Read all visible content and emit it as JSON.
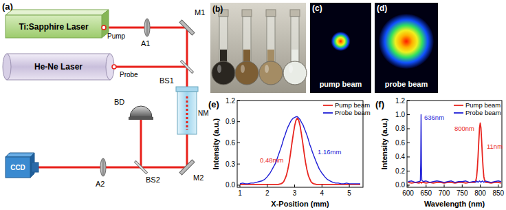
{
  "panels": {
    "a": {
      "label": "(a)",
      "components": {
        "pump_laser": "Ti:Sapphire Laser",
        "probe_laser": "He-Ne Laser",
        "pump_beam": "Pump",
        "probe_beam": "Probe",
        "attenuator_1": "A1",
        "mirror_1": "M1",
        "beam_splitter_1": "BS1",
        "sample": "NM",
        "mirror_2": "M2",
        "beam_splitter_2": "BS2",
        "beam_dump": "BD",
        "attenuator_2": "A2",
        "camera": "CCD"
      }
    },
    "b": {
      "label": "(b)"
    },
    "c": {
      "label": "(c)",
      "caption": "pump beam"
    },
    "d": {
      "label": "(d)",
      "caption": "probe beam"
    }
  },
  "chart_data": [
    {
      "type": "line",
      "title": "(e)",
      "x_label": "X-Position (mm)",
      "y_label": "Intensity (a.u.)",
      "x": [
        1.0,
        1.1,
        1.2,
        1.3,
        1.4,
        1.5,
        1.6,
        1.7,
        1.8,
        1.9,
        2.0,
        2.1,
        2.2,
        2.3,
        2.4,
        2.5,
        2.55,
        2.6,
        2.65,
        2.7,
        2.75,
        2.8,
        2.85,
        2.9,
        2.95,
        3.0,
        3.05,
        3.1,
        3.15,
        3.2,
        3.25,
        3.3,
        3.35,
        3.4,
        3.45,
        3.5,
        3.55,
        3.6,
        3.65,
        3.7,
        3.8,
        3.9,
        4.0,
        4.1,
        4.2,
        4.3,
        4.4,
        4.5,
        4.6,
        4.7,
        4.8,
        4.9,
        5.0,
        5.1,
        5.2,
        5.3,
        5.4
      ],
      "series": [
        {
          "name": "Pump beam",
          "color": "#e8251f",
          "values": [
            0.01,
            0.01,
            0.01,
            0.01,
            0.01,
            0.01,
            0.01,
            0.01,
            0.01,
            0.01,
            0.01,
            0.01,
            0.01,
            0.01,
            0.01,
            0.02,
            0.03,
            0.05,
            0.09,
            0.14,
            0.22,
            0.32,
            0.45,
            0.59,
            0.72,
            0.84,
            0.92,
            0.95,
            0.92,
            0.84,
            0.72,
            0.59,
            0.45,
            0.32,
            0.22,
            0.14,
            0.09,
            0.05,
            0.03,
            0.02,
            0.01,
            0.01,
            0.01,
            0.01,
            0.01,
            0.01,
            0.01,
            0.01,
            0.01,
            0.01,
            0.01,
            0.01,
            0.01,
            0.01,
            0.01,
            0.01,
            0.01
          ]
        },
        {
          "name": "Probe beam",
          "color": "#1f1fd6",
          "values": [
            0.02,
            0.03,
            0.02,
            0.02,
            0.03,
            0.03,
            0.04,
            0.05,
            0.06,
            0.08,
            0.12,
            0.17,
            0.24,
            0.31,
            0.42,
            0.53,
            0.59,
            0.66,
            0.71,
            0.77,
            0.82,
            0.86,
            0.9,
            0.93,
            0.95,
            0.96,
            0.97,
            0.97,
            0.95,
            0.93,
            0.89,
            0.86,
            0.81,
            0.76,
            0.71,
            0.65,
            0.58,
            0.53,
            0.47,
            0.42,
            0.32,
            0.23,
            0.17,
            0.12,
            0.08,
            0.06,
            0.04,
            0.03,
            0.03,
            0.02,
            0.02,
            0.03,
            0.02,
            0.02,
            0.02,
            0.02,
            0.02
          ]
        }
      ],
      "xlim": [
        0.9,
        5.5
      ],
      "xticks": [
        1,
        2,
        3,
        4,
        5
      ],
      "ylim": [
        -0.03,
        1.2
      ],
      "yticks": [
        {
          "value": 0,
          "label": "0.0"
        },
        0.3,
        0.6,
        0.9,
        1.2
      ],
      "legend": "upper right",
      "grid": false,
      "annotations": [
        {
          "text": "0.48mm",
          "color": "#e8251f"
        },
        {
          "text": "1.16mm",
          "color": "#1f1fd6"
        }
      ]
    },
    {
      "type": "line",
      "title": "(f)",
      "x_label": "Wavelength (nm)",
      "y_label": "Intensity (a.u.)",
      "x": [
        600,
        610,
        620,
        630,
        634,
        635,
        636,
        637,
        638,
        642,
        650,
        660,
        670,
        680,
        690,
        700,
        710,
        720,
        730,
        740,
        750,
        760,
        770,
        780,
        785,
        788,
        790,
        792,
        794,
        796,
        798,
        800,
        802,
        804,
        806,
        808,
        810,
        812,
        815,
        820,
        830,
        840,
        850,
        858
      ],
      "series": [
        {
          "name": "Pump beam",
          "color": "#e8251f",
          "values": [
            0.04,
            0.03,
            0.04,
            0.03,
            0.04,
            0.04,
            0.04,
            0.03,
            0.04,
            0.04,
            0.03,
            0.04,
            0.03,
            0.04,
            0.04,
            0.03,
            0.04,
            0.04,
            0.03,
            0.04,
            0.04,
            0.03,
            0.04,
            0.04,
            0.04,
            0.07,
            0.12,
            0.24,
            0.41,
            0.62,
            0.81,
            0.88,
            0.81,
            0.62,
            0.41,
            0.24,
            0.12,
            0.07,
            0.04,
            0.04,
            0.03,
            0.04,
            0.04,
            0.03
          ]
        },
        {
          "name": "Probe beam",
          "color": "#1f1fd6",
          "values": [
            0.05,
            0.06,
            0.04,
            0.05,
            0.06,
            0.32,
            1.0,
            0.27,
            0.07,
            0.05,
            0.06,
            0.04,
            0.05,
            0.06,
            0.05,
            0.04,
            0.05,
            0.06,
            0.04,
            0.05,
            0.05,
            0.06,
            0.04,
            0.05,
            0.05,
            0.04,
            0.06,
            0.05,
            0.04,
            0.05,
            0.06,
            0.05,
            0.04,
            0.05,
            0.06,
            0.05,
            0.04,
            0.05,
            0.06,
            0.05,
            0.04,
            0.05,
            0.06,
            0.05
          ]
        }
      ],
      "xlim": [
        597,
        860
      ],
      "xticks": [
        600,
        650,
        700,
        750,
        800,
        850
      ],
      "ylim": [
        -0.03,
        1.2
      ],
      "yticks": [
        {
          "value": 0,
          "label": "0.0"
        },
        0.2,
        0.4,
        0.6,
        0.8,
        {
          "value": 1,
          "label": "1.0"
        },
        1.2
      ],
      "legend": "upper right",
      "grid": false,
      "annotations": [
        {
          "text": "636nm",
          "color": "#1f1fd6"
        },
        {
          "text": "800nm",
          "color": "#e8251f"
        },
        {
          "text": "11nm",
          "color": "#e8251f"
        }
      ]
    }
  ]
}
